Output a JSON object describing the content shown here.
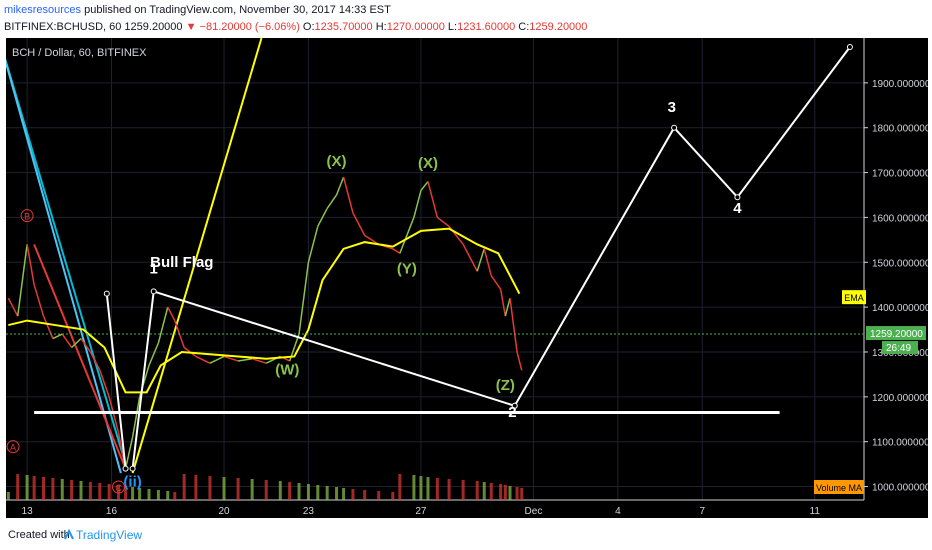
{
  "header": {
    "author": "mikesresources",
    "published": "published on TradingView.com, November 30, 2017 14:33 EST",
    "symbol": "BITFINEX:BCHUSD, 60",
    "last": "1259.20000",
    "change": "▼ −81.20000 (−6.06%)",
    "o_label": "O:",
    "o_value": "1235.70000",
    "h_label": "H:",
    "h_value": "1270.00000",
    "l_label": "L:",
    "l_value": "1231.60000",
    "c_label": "C:",
    "c_value": "1259.20000",
    "down_color": "#e53935",
    "author_color": "#2962ff"
  },
  "footer": {
    "created": "Created with",
    "brand": "TradingView",
    "logo_icon": "tradingview-logo-icon"
  },
  "chart_data": {
    "type": "candlestick",
    "title": "BCH / Dollar, 60, BITFINEX",
    "x_tick_labels": [
      "13",
      "16",
      "20",
      "23",
      "27",
      "Dec",
      "4",
      "7",
      "11"
    ],
    "x_tick_dates": [
      "2017-11-13",
      "2017-11-16",
      "2017-11-20",
      "2017-11-23",
      "2017-11-27",
      "2017-12-01",
      "2017-12-04",
      "2017-12-07",
      "2017-12-11"
    ],
    "y_ticks": [
      "1000.000000",
      "1100.000000",
      "1200.000000",
      "1300.000000",
      "1400.000000",
      "1500.000000",
      "1600.000000",
      "1700.000000",
      "1800.000000",
      "1900.000000"
    ],
    "ylim": [
      970,
      2000
    ],
    "last_price_label": "1259.20000",
    "countdown_label": "26:49",
    "price_line": 1340,
    "price_path": [
      [
        "2017-11-12T08:00",
        1420
      ],
      [
        "2017-11-12T16:00",
        1380
      ],
      [
        "2017-11-13T00:00",
        1540
      ],
      [
        "2017-11-13T06:00",
        1450
      ],
      [
        "2017-11-13T14:00",
        1380
      ],
      [
        "2017-11-13T22:00",
        1330
      ],
      [
        "2017-11-14T06:00",
        1340
      ],
      [
        "2017-11-14T14:00",
        1310
      ],
      [
        "2017-11-14T22:00",
        1330
      ],
      [
        "2017-11-15T06:00",
        1300
      ],
      [
        "2017-11-15T14:00",
        1260
      ],
      [
        "2017-11-15T22:00",
        1200
      ],
      [
        "2017-11-16T06:00",
        1120
      ],
      [
        "2017-11-16T12:00",
        1040
      ],
      [
        "2017-11-16T18:00",
        1110
      ],
      [
        "2017-11-17T00:00",
        1200
      ],
      [
        "2017-11-17T08:00",
        1270
      ],
      [
        "2017-11-17T16:00",
        1320
      ],
      [
        "2017-11-18T00:00",
        1400
      ],
      [
        "2017-11-18T06:00",
        1370
      ],
      [
        "2017-11-18T14:00",
        1310
      ],
      [
        "2017-11-19T00:00",
        1290
      ],
      [
        "2017-11-19T12:00",
        1275
      ],
      [
        "2017-11-20T00:00",
        1290
      ],
      [
        "2017-11-20T12:00",
        1280
      ],
      [
        "2017-11-21T00:00",
        1285
      ],
      [
        "2017-11-21T12:00",
        1275
      ],
      [
        "2017-11-22T00:00",
        1290
      ],
      [
        "2017-11-22T08:00",
        1280
      ],
      [
        "2017-11-22T16:00",
        1340
      ],
      [
        "2017-11-23T00:00",
        1500
      ],
      [
        "2017-11-23T08:00",
        1580
      ],
      [
        "2017-11-23T16:00",
        1620
      ],
      [
        "2017-11-24T00:00",
        1650
      ],
      [
        "2017-11-24T06:00",
        1690
      ],
      [
        "2017-11-24T14:00",
        1610
      ],
      [
        "2017-11-25T00:00",
        1560
      ],
      [
        "2017-11-25T12:00",
        1540
      ],
      [
        "2017-11-26T00:00",
        1530
      ],
      [
        "2017-11-26T06:00",
        1520
      ],
      [
        "2017-11-26T18:00",
        1600
      ],
      [
        "2017-11-27T00:00",
        1660
      ],
      [
        "2017-11-27T06:00",
        1680
      ],
      [
        "2017-11-27T14:00",
        1600
      ],
      [
        "2017-11-28T00:00",
        1580
      ],
      [
        "2017-11-28T12:00",
        1540
      ],
      [
        "2017-11-29T00:00",
        1480
      ],
      [
        "2017-11-29T06:00",
        1530
      ],
      [
        "2017-11-29T12:00",
        1470
      ],
      [
        "2017-11-29T20:00",
        1440
      ],
      [
        "2017-11-30T00:00",
        1380
      ],
      [
        "2017-11-30T04:00",
        1420
      ],
      [
        "2017-11-30T10:00",
        1300
      ],
      [
        "2017-11-30T14:00",
        1259
      ]
    ],
    "ema_path": [
      [
        "2017-11-12T08:00",
        1360
      ],
      [
        "2017-11-13T00:00",
        1370
      ],
      [
        "2017-11-14T00:00",
        1360
      ],
      [
        "2017-11-15T00:00",
        1350
      ],
      [
        "2017-11-15T18:00",
        1310
      ],
      [
        "2017-11-16T12:00",
        1210
      ],
      [
        "2017-11-17T06:00",
        1210
      ],
      [
        "2017-11-17T18:00",
        1270
      ],
      [
        "2017-11-18T12:00",
        1300
      ],
      [
        "2017-11-19T12:00",
        1295
      ],
      [
        "2017-11-20T12:00",
        1290
      ],
      [
        "2017-11-21T12:00",
        1285
      ],
      [
        "2017-11-22T12:00",
        1290
      ],
      [
        "2017-11-23T00:00",
        1350
      ],
      [
        "2017-11-23T12:00",
        1460
      ],
      [
        "2017-11-24T06:00",
        1530
      ],
      [
        "2017-11-25T00:00",
        1545
      ],
      [
        "2017-11-26T00:00",
        1535
      ],
      [
        "2017-11-27T00:00",
        1570
      ],
      [
        "2017-11-28T00:00",
        1575
      ],
      [
        "2017-11-29T00:00",
        1540
      ],
      [
        "2017-11-29T18:00",
        1520
      ],
      [
        "2017-11-30T12:00",
        1430
      ]
    ],
    "wave_lines": [
      {
        "points": [
          [
            "2017-11-16T18:00",
            1040
          ],
          [
            "2017-11-17T12:00",
            1435
          ],
          [
            "2017-11-30T08:00",
            1180
          ]
        ],
        "color": "#ffffff"
      },
      {
        "points": [
          [
            "2017-11-30T08:00",
            1180
          ],
          [
            "2017-12-06T00:00",
            1800
          ],
          [
            "2017-12-08T06:00",
            1645
          ],
          [
            "2017-12-12T06:00",
            1980
          ]
        ],
        "color": "#ffffff"
      },
      {
        "points": [
          [
            "2017-11-16T12:00",
            1040
          ],
          [
            "2017-11-15T20:00",
            1430
          ]
        ],
        "color": "#ffffff"
      }
    ],
    "support_line": {
      "from": "2017-11-13T06:00",
      "to": "2017-12-09T18:00",
      "y": 1165,
      "color": "#ffffff"
    },
    "trend_lines": [
      {
        "points": [
          [
            "2017-11-12T00:00",
            2000
          ],
          [
            "2017-11-16T12:00",
            1050
          ]
        ],
        "color": "#00bcd4"
      },
      {
        "points": [
          [
            "2017-11-12T00:00",
            2000
          ],
          [
            "2017-11-16T08:00",
            1030
          ]
        ],
        "color": "#4fc3f7"
      },
      {
        "points": [
          [
            "2017-11-16T18:00",
            1030
          ],
          [
            "2017-11-21T08:00",
            2000
          ]
        ],
        "color": "#ffff00"
      },
      {
        "points": [
          [
            "2017-11-13T06:00",
            1540
          ],
          [
            "2017-11-16T12:00",
            1040
          ]
        ],
        "color": "#e53935"
      }
    ],
    "wave_labels": [
      {
        "text": "1",
        "x": "2017-11-17T12:00",
        "y": 1475,
        "color": "#ffffff"
      },
      {
        "text": "2",
        "x": "2017-11-30T06:00",
        "y": 1155,
        "color": "#ffffff"
      },
      {
        "text": "3",
        "x": "2017-12-05T22:00",
        "y": 1835,
        "color": "#ffffff"
      },
      {
        "text": "4",
        "x": "2017-12-08T06:00",
        "y": 1610,
        "color": "#ffffff"
      },
      {
        "text": "Bull Flag",
        "x": "2017-11-18T12:00",
        "y": 1490,
        "color": "#ffffff"
      },
      {
        "text": "(X)",
        "x": "2017-11-24T00:00",
        "y": 1715,
        "color": "#8bc34a"
      },
      {
        "text": "(X)",
        "x": "2017-11-27T06:00",
        "y": 1710,
        "color": "#8bc34a"
      },
      {
        "text": "(Y)",
        "x": "2017-11-26T12:00",
        "y": 1475,
        "color": "#8bc34a"
      },
      {
        "text": "(W)",
        "x": "2017-11-22T06:00",
        "y": 1250,
        "color": "#8bc34a"
      },
      {
        "text": "(Z)",
        "x": "2017-11-30T00:00",
        "y": 1215,
        "color": "#8bc34a"
      },
      {
        "text": "(ii)",
        "x": "2017-11-16T18:00",
        "y": 1000,
        "color": "#2196f3"
      },
      {
        "text": "B",
        "x": "2017-11-13T00:00",
        "y": 1595,
        "color": "#e53935"
      },
      {
        "text": "A",
        "x": "2017-11-12T12:00",
        "y": 1080,
        "color": "#e53935"
      },
      {
        "text": "C",
        "x": "2017-11-16T06:00",
        "y": 990,
        "color": "#e53935"
      }
    ],
    "ema_label": "EMA",
    "volume_label": "Volume MA",
    "colors": {
      "background": "#000000",
      "up": "#8bc34a",
      "down": "#e53935",
      "ema": "#ffff00",
      "axis_text": "#d1d4dc",
      "grid": "#1e2230",
      "price_tag": "#4caf50"
    }
  }
}
